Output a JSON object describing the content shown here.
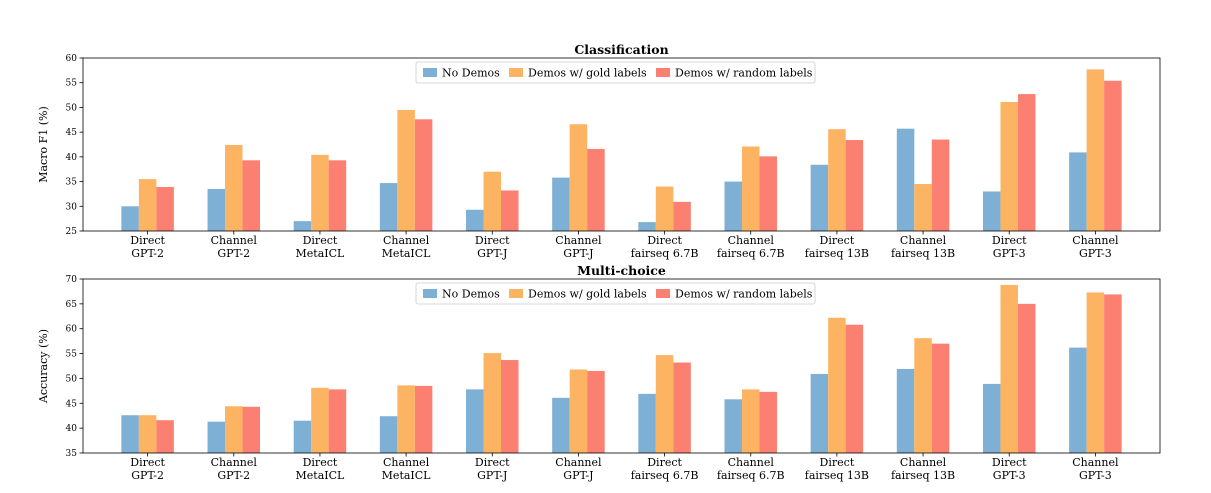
{
  "colors": {
    "no_demos": "#7eb0d5",
    "gold": "#fdb462",
    "random": "#fb8072"
  },
  "chart_data": [
    {
      "type": "bar",
      "title": "Classification",
      "ylabel": "Macro F1 (%)",
      "xlabel": "",
      "ylim": [
        25,
        60
      ],
      "yticks": [
        25,
        30,
        35,
        40,
        45,
        50,
        55,
        60
      ],
      "legend_position": "top-center",
      "grid": false,
      "categories": [
        [
          "Direct",
          "GPT-2"
        ],
        [
          "Channel",
          "GPT-2"
        ],
        [
          "Direct",
          "MetaICL"
        ],
        [
          "Channel",
          "MetaICL"
        ],
        [
          "Direct",
          "GPT-J"
        ],
        [
          "Channel",
          "GPT-J"
        ],
        [
          "Direct",
          "fairseq 6.7B"
        ],
        [
          "Channel",
          "fairseq 6.7B"
        ],
        [
          "Direct",
          "fairseq 13B"
        ],
        [
          "Channel",
          "fairseq 13B"
        ],
        [
          "Direct",
          "GPT-3"
        ],
        [
          "Channel",
          "GPT-3"
        ]
      ],
      "series": [
        {
          "name": "No Demos",
          "color_key": "no_demos",
          "values": [
            30.0,
            33.5,
            27.0,
            34.7,
            29.3,
            35.8,
            26.8,
            35.0,
            38.4,
            45.7,
            33.0,
            40.9
          ]
        },
        {
          "name": "Demos w/ gold labels",
          "color_key": "gold",
          "values": [
            35.5,
            42.4,
            40.4,
            49.5,
            37.0,
            46.6,
            34.0,
            42.1,
            45.6,
            34.5,
            51.1,
            57.7
          ]
        },
        {
          "name": "Demos w/ random labels",
          "color_key": "random",
          "values": [
            33.9,
            39.3,
            39.3,
            47.6,
            33.2,
            41.6,
            30.9,
            40.1,
            43.4,
            43.5,
            52.7,
            55.4
          ]
        }
      ]
    },
    {
      "type": "bar",
      "title": "Multi-choice",
      "ylabel": "Accuracy (%)",
      "xlabel": "",
      "ylim": [
        35,
        70
      ],
      "yticks": [
        35,
        40,
        45,
        50,
        55,
        60,
        65,
        70
      ],
      "legend_position": "top-center",
      "grid": false,
      "categories": [
        [
          "Direct",
          "GPT-2"
        ],
        [
          "Channel",
          "GPT-2"
        ],
        [
          "Direct",
          "MetaICL"
        ],
        [
          "Channel",
          "MetaICL"
        ],
        [
          "Direct",
          "GPT-J"
        ],
        [
          "Channel",
          "GPT-J"
        ],
        [
          "Direct",
          "fairseq 6.7B"
        ],
        [
          "Channel",
          "fairseq 6.7B"
        ],
        [
          "Direct",
          "fairseq 13B"
        ],
        [
          "Channel",
          "fairseq 13B"
        ],
        [
          "Direct",
          "GPT-3"
        ],
        [
          "Channel",
          "GPT-3"
        ]
      ],
      "series": [
        {
          "name": "No Demos",
          "color_key": "no_demos",
          "values": [
            42.6,
            41.3,
            41.5,
            42.4,
            47.8,
            46.1,
            46.9,
            45.8,
            50.9,
            51.9,
            48.9,
            56.2
          ]
        },
        {
          "name": "Demos w/ gold labels",
          "color_key": "gold",
          "values": [
            42.6,
            44.4,
            48.1,
            48.6,
            55.1,
            51.8,
            54.7,
            47.8,
            62.2,
            58.1,
            68.8,
            67.3
          ]
        },
        {
          "name": "Demos w/ random labels",
          "color_key": "random",
          "values": [
            41.6,
            44.3,
            47.8,
            48.5,
            53.7,
            51.5,
            53.2,
            47.3,
            60.8,
            57.0,
            65.0,
            66.9
          ]
        }
      ]
    }
  ]
}
